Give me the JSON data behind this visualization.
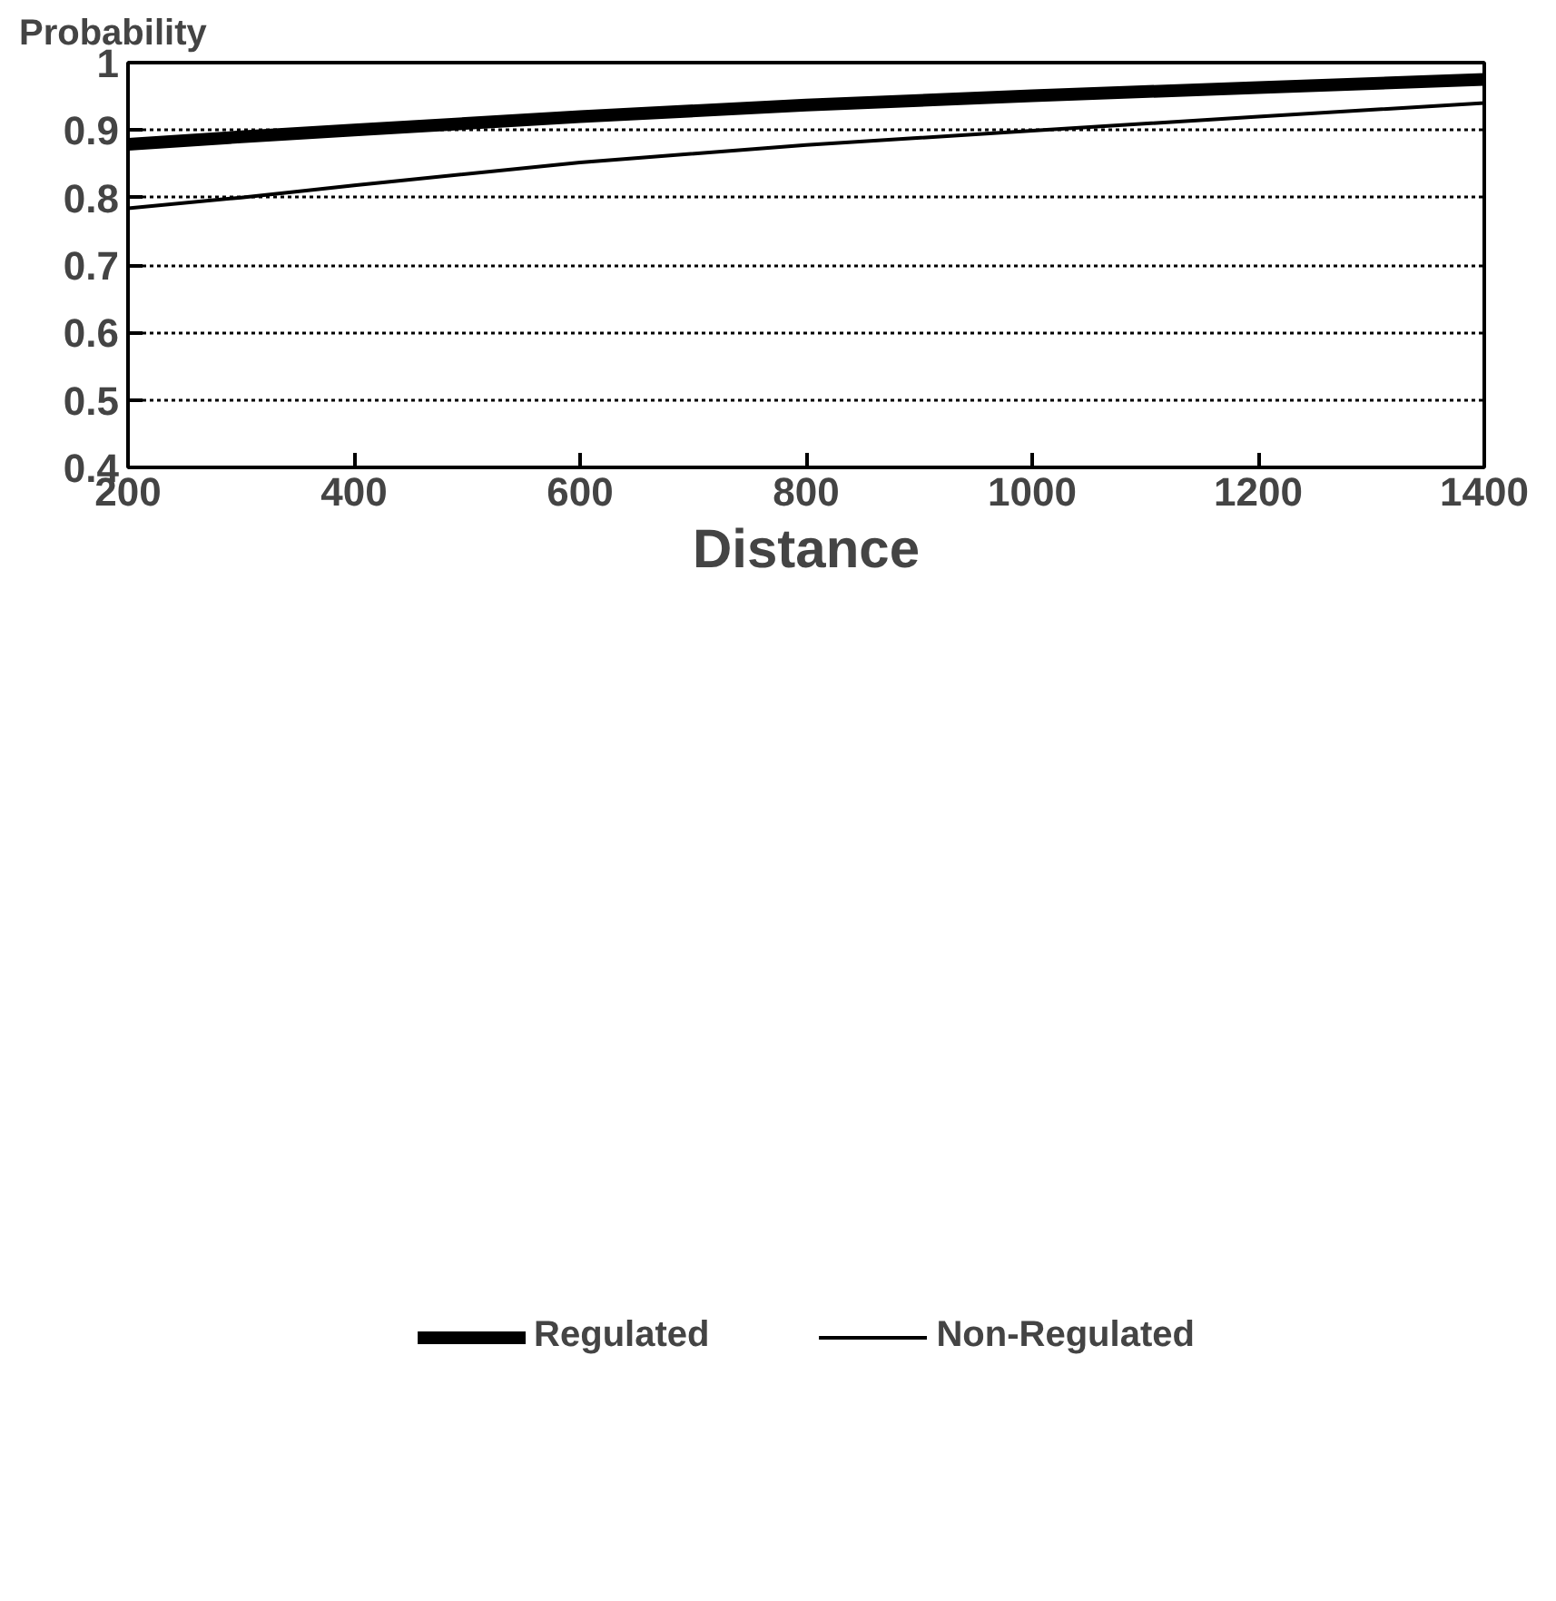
{
  "chart_data": {
    "type": "line",
    "xlabel": "Distance",
    "ylabel": "Probability",
    "x": [
      200,
      300,
      400,
      600,
      800,
      1000,
      1200,
      1400
    ],
    "series": [
      {
        "name": "Regulated",
        "color": "#000000",
        "values": [
          0.879,
          0.89,
          0.9,
          0.92,
          0.937,
          0.951,
          0.963,
          0.975
        ]
      },
      {
        "name": "Non-Regulated",
        "color": "#000000",
        "values": [
          0.784,
          0.8,
          0.818,
          0.852,
          0.878,
          0.899,
          0.92,
          0.94
        ]
      }
    ],
    "xlim": [
      200,
      1400
    ],
    "ylim": [
      0.4,
      1
    ],
    "xticks": [
      200,
      400,
      600,
      800,
      1000,
      1200,
      1400
    ],
    "yticks": [
      0.4,
      0.5,
      0.6,
      0.7,
      0.8,
      0.9,
      1
    ],
    "grid": "y",
    "legend": "bottom",
    "marker": "none",
    "line_style": "solid"
  }
}
